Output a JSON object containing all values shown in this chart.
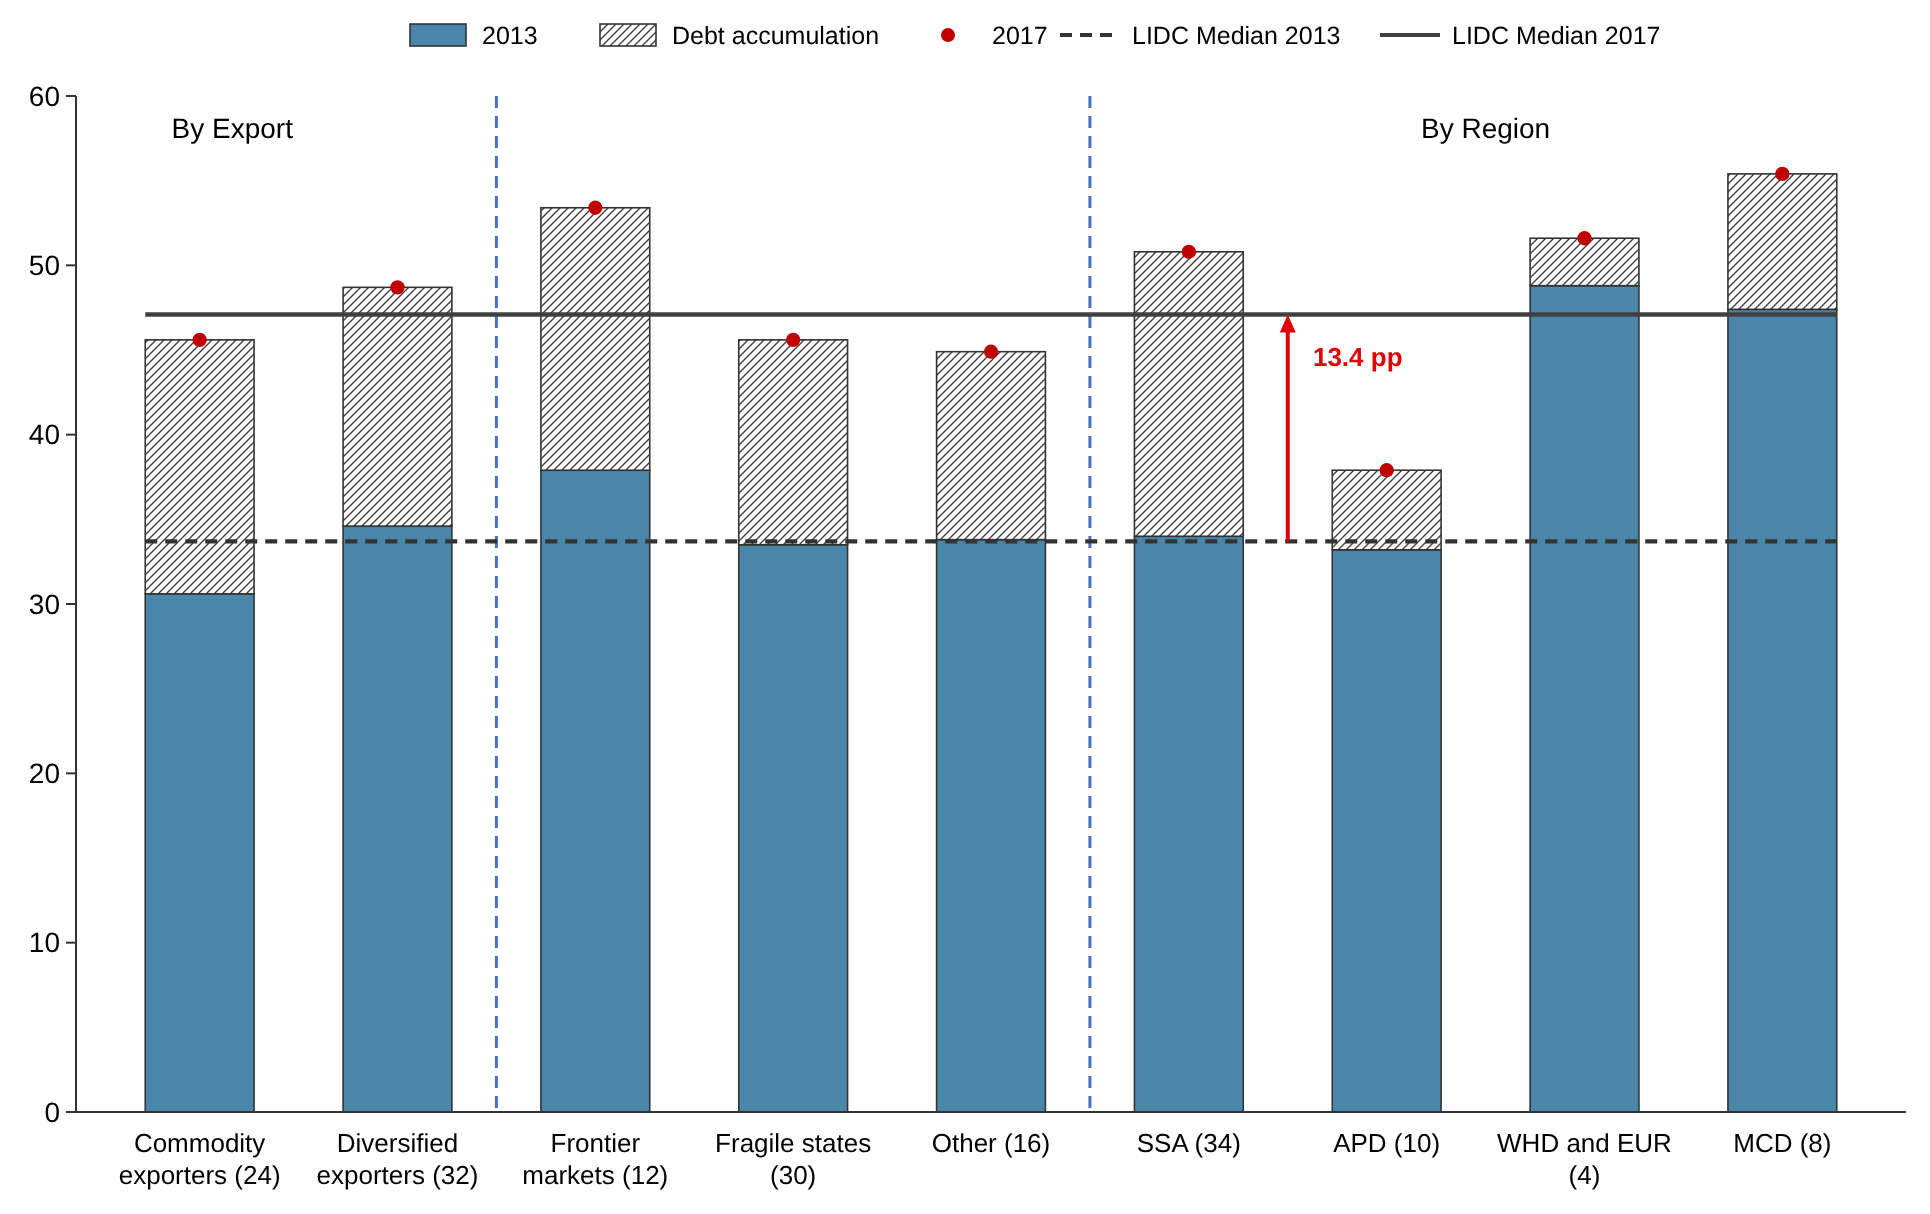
{
  "chart_data": {
    "type": "bar",
    "stacked": true,
    "categories": [
      "Commodity exporters (24)",
      "Diversified exporters (32)",
      "Frontier markets (12)",
      "Fragile states (30)",
      "Other (16)",
      "SSA (34)",
      "APD (10)",
      "WHD and EUR (4)",
      "MCD (8)"
    ],
    "series": [
      {
        "name": "2013",
        "color": "#4a86aa",
        "values": [
          30.6,
          34.6,
          37.9,
          33.5,
          33.8,
          34.0,
          33.2,
          48.8,
          47.4
        ]
      },
      {
        "name": "Debt accumulation",
        "color": "#404040",
        "values": [
          15.0,
          14.1,
          15.5,
          12.1,
          11.1,
          16.8,
          4.7,
          2.8,
          8.0
        ]
      },
      {
        "name": "2017",
        "type": "scatter",
        "color": "#c00000",
        "x": [
          "Commodity exporters (24)",
          "Diversified exporters (32)",
          "Frontier markets (12)",
          "Fragile states (30)",
          "Other (16)",
          "SSA (34)",
          "APD (10)",
          "WHD and EUR (4)",
          "MCD (8)"
        ],
        "values": [
          45.6,
          48.7,
          53.4,
          45.6,
          44.9,
          50.8,
          37.9,
          51.6,
          55.4
        ]
      }
    ],
    "ylim": [
      0,
      60
    ],
    "yticks": [
      0,
      10,
      20,
      30,
      40,
      50,
      60
    ],
    "grid": false,
    "legend": "top",
    "marker": "circle",
    "ref_lines": [
      {
        "axis": "y",
        "value": 33.7,
        "label": "LIDC Median 2013",
        "color": "#333333",
        "line_style": "dashed"
      },
      {
        "axis": "y",
        "value": 47.1,
        "label": "LIDC  Median 2017",
        "color": "#404040",
        "line_style": "solid"
      }
    ],
    "annotations": [
      "By Export",
      "By Region",
      {
        "text": "13.4 pp",
        "y": 47.1
      }
    ]
  }
}
